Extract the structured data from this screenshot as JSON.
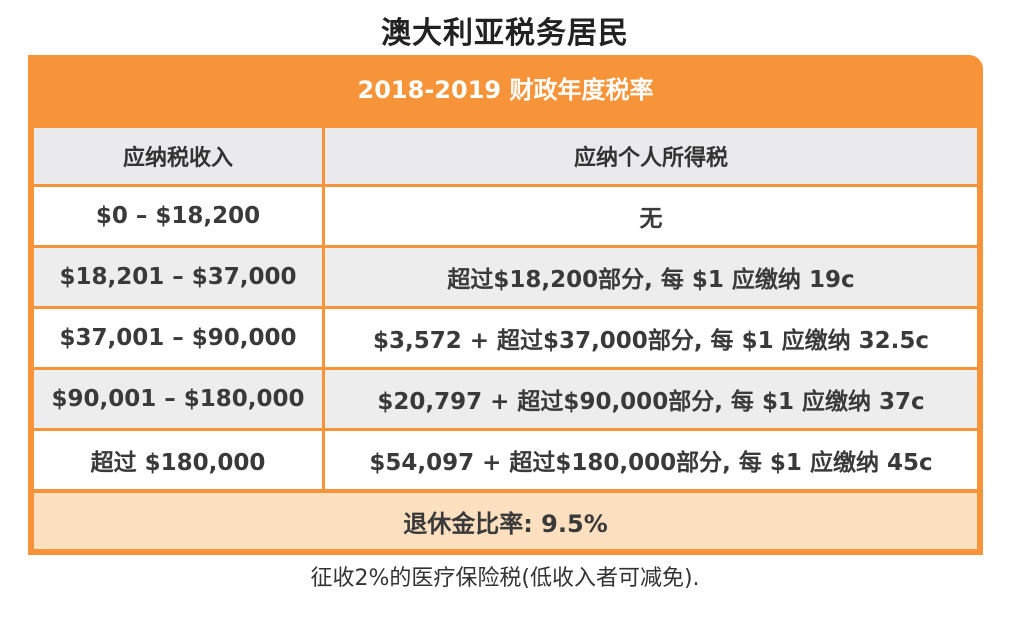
{
  "page_title": "澳大利亚税务居民",
  "panel": {
    "heading": "2018-2019 财政年度税率",
    "columns": [
      "应纳税收入",
      "应纳个人所得税"
    ],
    "rows": [
      {
        "income": "$0 – $18,200",
        "tax": "无"
      },
      {
        "income": "$18,201 – $37,000",
        "tax": "超过$18,200部分, 每 $1 应缴纳 19c"
      },
      {
        "income": "$37,001 – $90,000",
        "tax": "$3,572 + 超过$37,000部分, 每 $1 应缴纳 32.5c"
      },
      {
        "income": "$90,001 – $180,000",
        "tax": "$20,797 + 超过$90,000部分, 每 $1 应缴纳 37c"
      },
      {
        "income": "超过 $180,000",
        "tax": "$54,097 + 超过$180,000部分, 每 $1 应缴纳 45c"
      }
    ],
    "footer": "退休金比率: 9.5%"
  },
  "note": "征收2%的医疗保险税(低收入者可减免).",
  "colors": {
    "accent": "#f7943a",
    "header_row": "#eaeaec",
    "alt_row": "#ededee",
    "footer_row": "#fde0bf"
  }
}
